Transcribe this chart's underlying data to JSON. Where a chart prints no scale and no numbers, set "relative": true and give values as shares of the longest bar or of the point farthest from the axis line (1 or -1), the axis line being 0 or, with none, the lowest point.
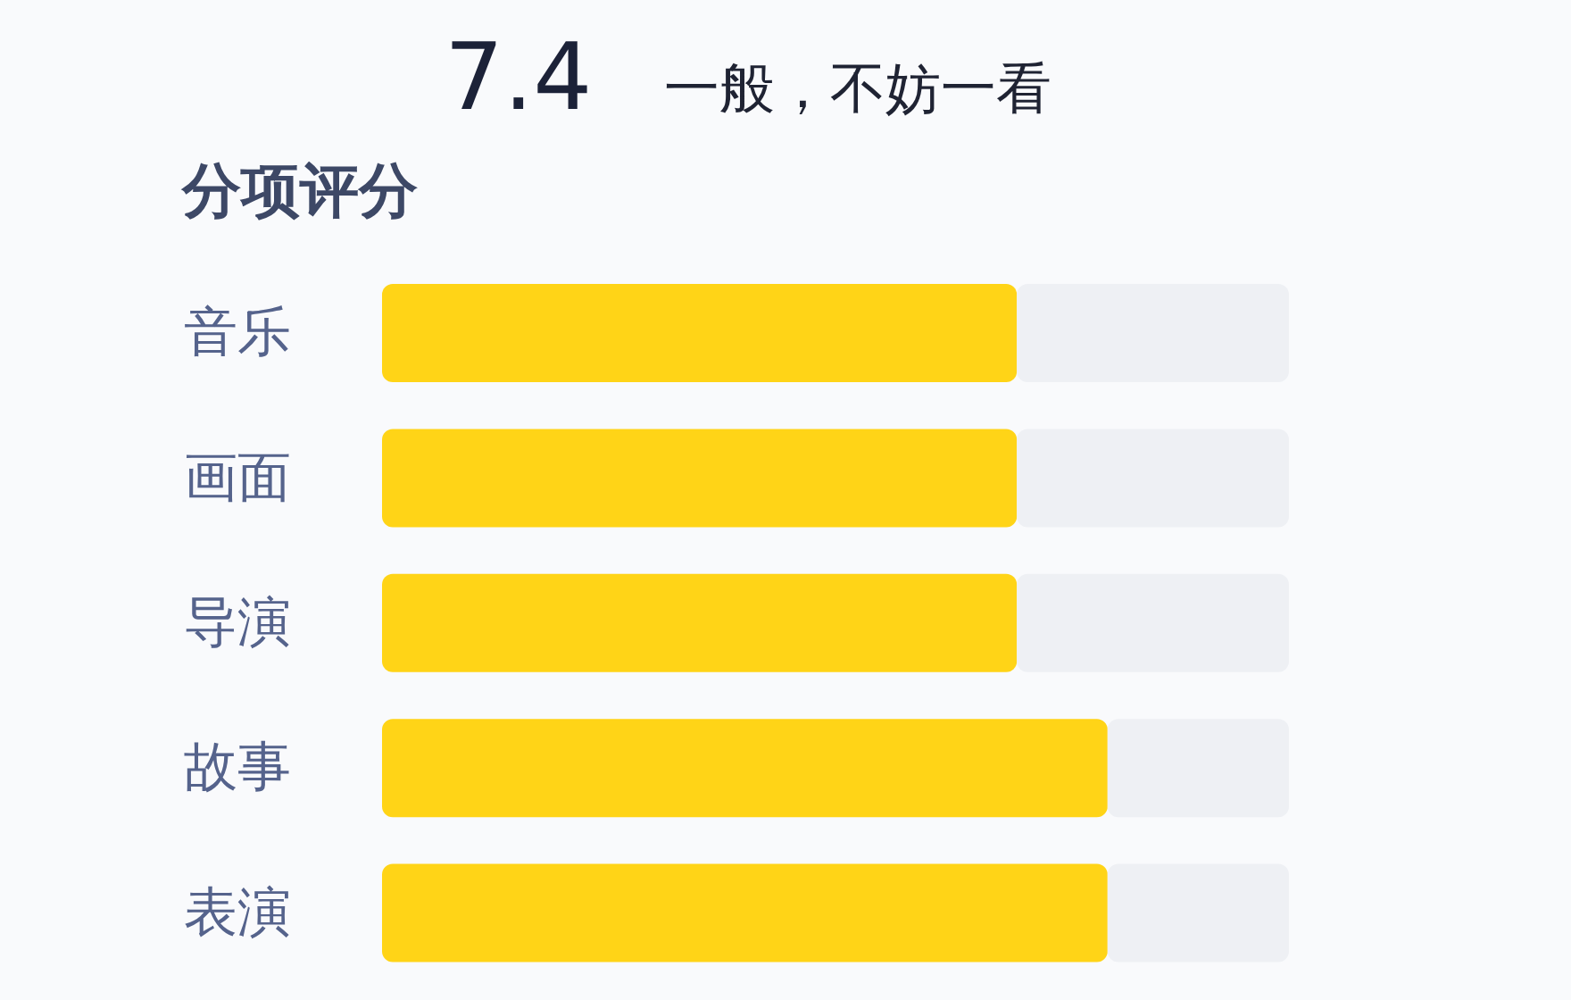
{
  "chart_data": {
    "type": "bar",
    "orientation": "horizontal",
    "stacked": true,
    "relative": true,
    "title": "7.4",
    "subtitle": "一般，不妨一看",
    "ylabel": "分项评分",
    "categories": [
      "音乐",
      "画面",
      "导演",
      "故事",
      "表演"
    ],
    "series": [
      {
        "color": "#ffd417",
        "values": [
          0.7,
          0.7,
          0.7,
          0.8,
          0.8
        ]
      },
      {
        "color": "#eef0f4",
        "values": [
          0.3,
          0.3,
          0.3,
          0.2,
          0.2
        ]
      }
    ]
  }
}
